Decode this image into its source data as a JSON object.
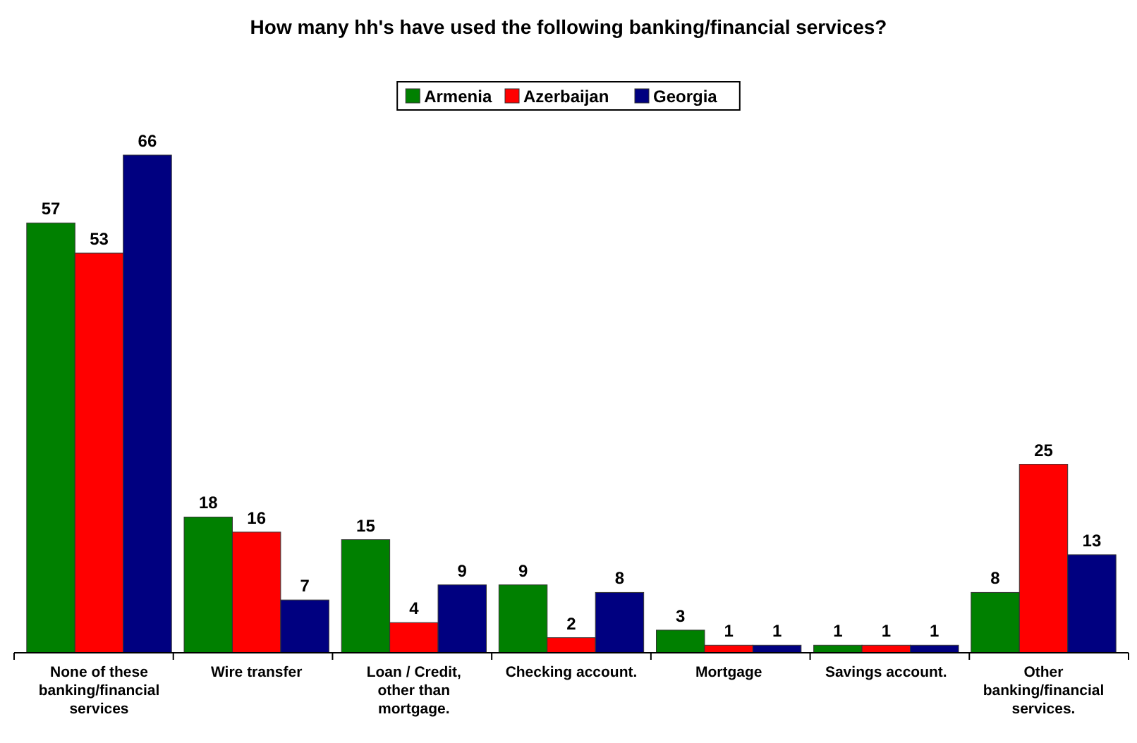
{
  "chart_data": {
    "type": "bar",
    "title": "How many hh's have used the following banking/financial services?",
    "categories": [
      "None of these banking/financial services",
      "Wire transfer",
      "Loan / Credit, other than mortgage.",
      "Checking account.",
      "Mortgage",
      "Savings account.",
      "Other banking/financial services."
    ],
    "series": [
      {
        "name": "Armenia",
        "color": "#008000",
        "values": [
          57,
          18,
          15,
          9,
          3,
          1,
          8
        ]
      },
      {
        "name": "Azerbaijan",
        "color": "#ff0000",
        "values": [
          53,
          16,
          4,
          2,
          1,
          1,
          25
        ]
      },
      {
        "name": "Georgia",
        "color": "#000080",
        "values": [
          66,
          7,
          9,
          8,
          1,
          1,
          13
        ]
      }
    ],
    "data_labels": true,
    "legend": "top",
    "grid": false
  }
}
